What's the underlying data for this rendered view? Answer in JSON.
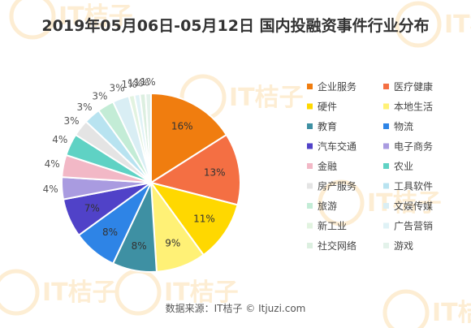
{
  "chart_data": {
    "type": "pie",
    "title": "2019年05月06日-05月12日 国内投融资事件行业分布",
    "legend_position": "right",
    "slices": [
      {
        "label": "企业服务",
        "value": 16,
        "display": "16%",
        "color": "#f07d0f"
      },
      {
        "label": "医疗健康",
        "value": 13,
        "display": "13%",
        "color": "#f46f43"
      },
      {
        "label": "硬件",
        "value": 11,
        "display": "11%",
        "color": "#ffd800"
      },
      {
        "label": "本地生活",
        "value": 9,
        "display": "9%",
        "color": "#fff176"
      },
      {
        "label": "教育",
        "value": 8,
        "display": "8%",
        "color": "#3e90a3"
      },
      {
        "label": "物流",
        "value": 8,
        "display": "8%",
        "color": "#2e84e6"
      },
      {
        "label": "汽车交通",
        "value": 7,
        "display": "7%",
        "color": "#5042c8"
      },
      {
        "label": "电子商务",
        "value": 4,
        "display": "4%",
        "color": "#a99be0"
      },
      {
        "label": "金融",
        "value": 4,
        "display": "4%",
        "color": "#f2b8c6"
      },
      {
        "label": "农业",
        "value": 4,
        "display": "4%",
        "color": "#5fd2c4"
      },
      {
        "label": "房产服务",
        "value": 3,
        "display": "3%",
        "color": "#e4e4e4"
      },
      {
        "label": "工具软件",
        "value": 3,
        "display": "3%",
        "color": "#b8e3f0"
      },
      {
        "label": "旅游",
        "value": 3,
        "display": "3%",
        "color": "#c3ecd6"
      },
      {
        "label": "文娱传媒",
        "value": 3,
        "display": "3%",
        "color": "#d9eef4"
      },
      {
        "label": "新工业",
        "value": 1,
        "display": "1%",
        "color": "#e2f3e0"
      },
      {
        "label": "广告营销",
        "value": 1,
        "display": "1%",
        "color": "#dff2f6"
      },
      {
        "label": "社交网络",
        "value": 1,
        "display": "1%",
        "color": "#dcefe0"
      },
      {
        "label": "游戏",
        "value": 1,
        "display": "1%",
        "color": "#e3f2ea"
      }
    ]
  },
  "watermark": "IT桔子",
  "source": "数据来源：IT桔子 © Itjuzi.com"
}
